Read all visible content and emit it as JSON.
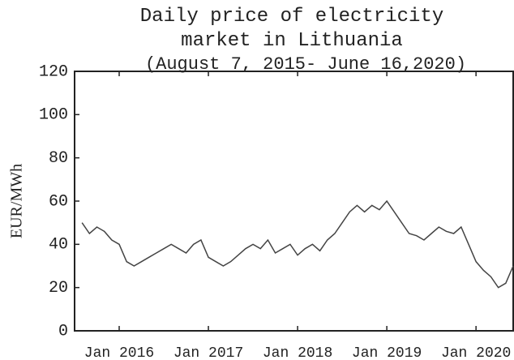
{
  "chart_data": {
    "type": "line",
    "title": "Daily price of electricity market in Lithuania",
    "subtitle": "(August 7, 2015- June 16,2020)",
    "y_label": "EUR/MWh",
    "x": [
      "2015-08",
      "2015-09",
      "2015-10",
      "2015-11",
      "2015-12",
      "2016-01",
      "2016-02",
      "2016-03",
      "2016-04",
      "2016-05",
      "2016-06",
      "2016-07",
      "2016-08",
      "2016-09",
      "2016-10",
      "2016-11",
      "2016-12",
      "2017-01",
      "2017-02",
      "2017-03",
      "2017-04",
      "2017-05",
      "2017-06",
      "2017-07",
      "2017-08",
      "2017-09",
      "2017-10",
      "2017-11",
      "2017-12",
      "2018-01",
      "2018-02",
      "2018-03",
      "2018-04",
      "2018-05",
      "2018-06",
      "2018-07",
      "2018-08",
      "2018-09",
      "2018-10",
      "2018-11",
      "2018-12",
      "2019-01",
      "2019-02",
      "2019-03",
      "2019-04",
      "2019-05",
      "2019-06",
      "2019-07",
      "2019-08",
      "2019-09",
      "2019-10",
      "2019-11",
      "2019-12",
      "2020-01",
      "2020-02",
      "2020-03",
      "2020-04",
      "2020-05",
      "2020-06"
    ],
    "series": [
      {
        "name": "EUR/MWh",
        "color": "#444444",
        "values": [
          50,
          45,
          48,
          46,
          42,
          40,
          32,
          30,
          32,
          34,
          36,
          38,
          40,
          38,
          36,
          40,
          42,
          34,
          32,
          30,
          32,
          35,
          38,
          40,
          38,
          42,
          36,
          38,
          40,
          35,
          38,
          40,
          37,
          42,
          45,
          50,
          55,
          58,
          55,
          58,
          56,
          60,
          55,
          50,
          45,
          44,
          42,
          45,
          48,
          46,
          45,
          48,
          40,
          32,
          28,
          25,
          20,
          22,
          30
        ]
      }
    ],
    "xlim": [
      "2015-07",
      "2020-06"
    ],
    "xticks": [
      {
        "value": "2016-01",
        "label": "Jan 2016"
      },
      {
        "value": "2017-01",
        "label": "Jan 2017"
      },
      {
        "value": "2018-01",
        "label": "Jan 2018"
      },
      {
        "value": "2019-01",
        "label": "Jan 2019"
      },
      {
        "value": "2020-01",
        "label": "Jan 2020"
      }
    ],
    "ylim": [
      0,
      120
    ],
    "yticks": [
      0,
      20,
      40,
      60,
      80,
      100,
      120
    ]
  }
}
